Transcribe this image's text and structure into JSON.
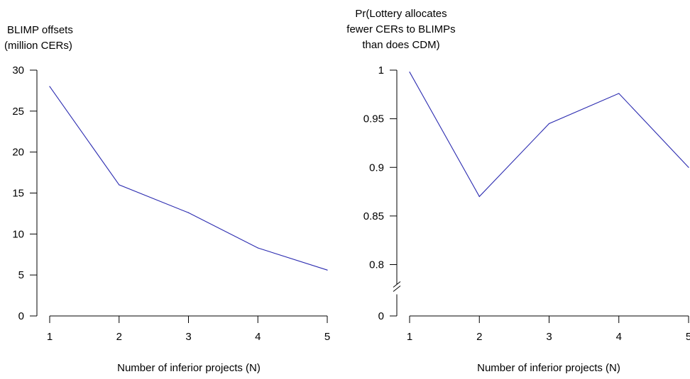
{
  "chart_data": [
    {
      "type": "line",
      "title": "",
      "ylabel_lines": [
        "BLIMP offsets",
        "(million CERs)"
      ],
      "xlabel": "Number of inferior projects (N)",
      "x": [
        1,
        2,
        3,
        4,
        5
      ],
      "x_ticks": [
        "1",
        "2",
        "3",
        "4",
        "5"
      ],
      "series": [
        {
          "values": [
            28.0,
            16.0,
            12.6,
            8.3,
            5.6
          ]
        }
      ],
      "ylim": [
        0,
        30
      ],
      "y_ticks": [
        0,
        5,
        10,
        15,
        20,
        25,
        30
      ],
      "y_tick_labels": [
        "0",
        "5",
        "10",
        "15",
        "20",
        "25",
        "30"
      ],
      "line_color": "#2b2bb0",
      "grid": false
    },
    {
      "type": "line",
      "title": "",
      "ylabel_lines": [
        "Pr(Lottery allocates",
        "fewer CERs to BLIMPs",
        "than does CDM)"
      ],
      "xlabel": "Number of inferior projects (N)",
      "x": [
        1,
        2,
        3,
        4,
        5
      ],
      "x_ticks": [
        "1",
        "2",
        "3",
        "4",
        "5"
      ],
      "series": [
        {
          "values": [
            0.998,
            0.87,
            0.945,
            0.976,
            0.9
          ]
        }
      ],
      "ylim": [
        0.8,
        1.0
      ],
      "axis_break": true,
      "y_ticks": [
        0,
        0.8,
        0.85,
        0.9,
        0.95,
        1
      ],
      "y_tick_labels": [
        "0",
        "0.8",
        "0.85",
        "0.9",
        "0.95",
        "1"
      ],
      "line_color": "#2b2bb0",
      "grid": false
    }
  ]
}
